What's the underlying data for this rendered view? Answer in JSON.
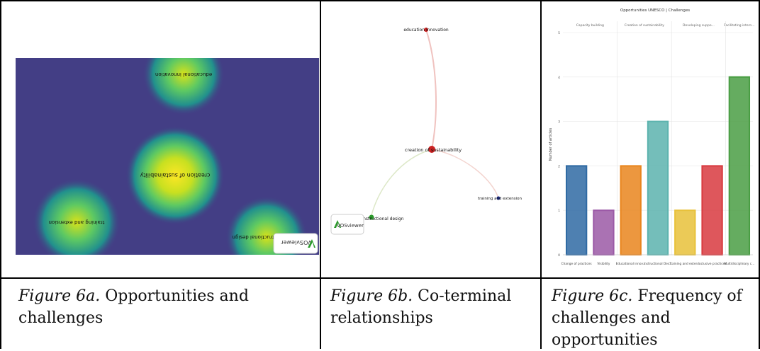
{
  "figure_a": {
    "caption_label": "Figure 6a.",
    "caption_text": "Opportunities and challenges",
    "colors": {
      "background": "#433e85",
      "hot": "#fde725",
      "mid": "#5ec962",
      "cool": "#21908d"
    },
    "clusters": [
      {
        "label": "educational innovation"
      },
      {
        "label": "creation of sustainability"
      },
      {
        "label": "training and extension"
      },
      {
        "label": "instructional design"
      }
    ],
    "badge": "VOSviewer",
    "badge_icon": "vosviewer-logo-icon"
  },
  "figure_b": {
    "caption_label": "Figure 6b.",
    "caption_text": "Co-terminal relationships",
    "nodes": [
      {
        "label": "education innovation",
        "color": "#cc2222"
      },
      {
        "label": "creation of sustainability",
        "color": "#cc2222"
      },
      {
        "label": "training and extension",
        "color": "#1a2a8a"
      },
      {
        "label": "instructional design",
        "color": "#2a9a2a"
      }
    ],
    "badge": "VOSviewer",
    "badge_icon": "vosviewer-logo-icon"
  },
  "figure_c": {
    "caption_label": "Figure 6c.",
    "caption_text": "Frequency of challenges and opportunities",
    "chart_data": {
      "type": "bar",
      "title": "Opportunities UNESCO | Challenges",
      "ylabel": "Number of articles",
      "xlabel": "",
      "ylim": [
        0,
        5
      ],
      "yticks": [
        "0",
        "1",
        "2",
        "3",
        "4",
        "5"
      ],
      "groups": [
        {
          "label": "Capacity building",
          "categories": [
            0,
            1
          ]
        },
        {
          "label": "Creation of sustainability",
          "categories": [
            2,
            3
          ]
        },
        {
          "label": "Developing suppo...",
          "categories": [
            4,
            5
          ]
        },
        {
          "label": "Facilitating intern...",
          "categories": [
            6
          ]
        }
      ],
      "categories": [
        "Change of practices",
        "Visibility",
        "Educational innov...",
        "Instructional Des...",
        "Training and exten...",
        "Inclusive practices",
        "Multidisciplinary c..."
      ],
      "values": [
        2,
        1,
        2,
        3,
        1,
        2,
        4
      ],
      "colors": [
        "#2f6aa3",
        "#9b59a6",
        "#e9851d",
        "#5cb3ae",
        "#e8c13a",
        "#d83a3f",
        "#4a9e44"
      ],
      "grid": true,
      "legend": "none"
    }
  }
}
